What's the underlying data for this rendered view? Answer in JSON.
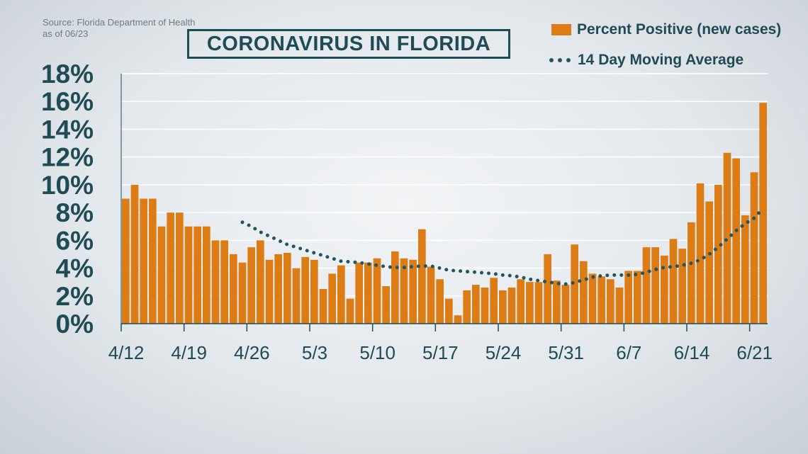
{
  "source": {
    "line1": "Source: Florida Department of Health",
    "line2": "as of 06/23"
  },
  "chart_data": {
    "type": "bar",
    "title": "CORONAVIRUS IN FLORIDA",
    "ylim": [
      0,
      18
    ],
    "y_ticks": [
      "0%",
      "2%",
      "4%",
      "6%",
      "8%",
      "10%",
      "12%",
      "14%",
      "16%",
      "18%"
    ],
    "x_ticks": [
      "4/12",
      "4/19",
      "4/26",
      "5/3",
      "5/10",
      "5/17",
      "5/24",
      "5/31",
      "6/7",
      "6/14",
      "6/21"
    ],
    "grid": true,
    "legend_position": "top-right",
    "colors": {
      "bars": "#dd7b14",
      "line": "#1f5662",
      "text": "#1f4b57",
      "grid": "#ffffff"
    },
    "series": [
      {
        "name": "Percent Positive (new cases)",
        "type": "bar",
        "values": [
          9.0,
          10.0,
          9.0,
          9.0,
          7.0,
          8.0,
          8.0,
          7.0,
          7.0,
          7.0,
          6.0,
          6.0,
          5.0,
          4.4,
          5.5,
          6.0,
          4.6,
          5.0,
          5.1,
          4.0,
          4.8,
          4.6,
          2.5,
          3.6,
          4.2,
          1.8,
          4.4,
          4.4,
          4.7,
          2.7,
          5.2,
          4.7,
          4.6,
          6.8,
          4.1,
          3.2,
          1.8,
          0.6,
          2.4,
          2.8,
          2.6,
          3.3,
          2.4,
          2.6,
          3.2,
          3.0,
          3.0,
          5.0,
          3.1,
          2.8,
          5.7,
          4.5,
          3.6,
          3.4,
          3.2,
          2.6,
          3.8,
          3.8,
          5.5,
          5.5,
          4.9,
          6.1,
          5.4,
          7.3,
          10.1,
          8.8,
          10.0,
          12.3,
          11.9,
          7.8,
          10.9,
          15.9
        ]
      },
      {
        "name": "14 Day Moving Average",
        "type": "line",
        "style": "dotted",
        "values": [
          null,
          null,
          null,
          null,
          null,
          null,
          null,
          null,
          null,
          null,
          null,
          null,
          null,
          7.3,
          7.0,
          6.6,
          6.3,
          6.0,
          5.7,
          5.5,
          5.3,
          5.1,
          4.9,
          4.7,
          4.5,
          4.45,
          4.4,
          4.3,
          4.2,
          4.1,
          4.05,
          4.05,
          4.1,
          4.15,
          4.15,
          4.0,
          3.85,
          3.8,
          3.75,
          3.7,
          3.65,
          3.6,
          3.5,
          3.45,
          3.35,
          3.2,
          3.1,
          3.0,
          2.9,
          2.85,
          2.95,
          3.15,
          3.35,
          3.45,
          3.5,
          3.5,
          3.5,
          3.55,
          3.7,
          3.9,
          4.05,
          4.1,
          4.2,
          4.35,
          4.6,
          5.0,
          5.5,
          6.1,
          6.7,
          7.2,
          7.6,
          8.3
        ]
      }
    ]
  }
}
